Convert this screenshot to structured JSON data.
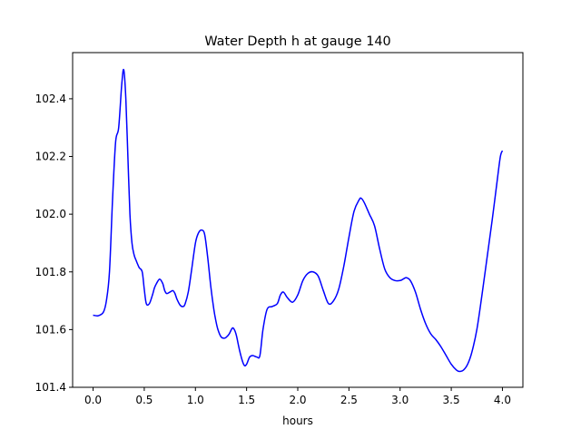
{
  "chart_data": {
    "type": "line",
    "title": "Water Depth h at gauge 140",
    "xlabel": "hours",
    "ylabel": "",
    "xlim": [
      -0.2,
      4.2
    ],
    "ylim": [
      101.4,
      102.56
    ],
    "xticks": [
      0.0,
      0.5,
      1.0,
      1.5,
      2.0,
      2.5,
      3.0,
      3.5,
      4.0
    ],
    "xtick_labels": [
      "0.0",
      "0.5",
      "1.0",
      "1.5",
      "2.0",
      "2.5",
      "3.0",
      "3.5",
      "4.0"
    ],
    "yticks": [
      101.4,
      101.6,
      101.8,
      102.0,
      102.2,
      102.4
    ],
    "ytick_labels": [
      "101.4",
      "101.6",
      "101.8",
      "102.0",
      "102.2",
      "102.4"
    ],
    "grid": false,
    "legend": "none",
    "series": [
      {
        "color": "#0000ff",
        "x": [
          0.0,
          0.05,
          0.1,
          0.13,
          0.16,
          0.19,
          0.22,
          0.25,
          0.28,
          0.3,
          0.32,
          0.34,
          0.36,
          0.38,
          0.4,
          0.42,
          0.45,
          0.48,
          0.5,
          0.52,
          0.55,
          0.58,
          0.6,
          0.62,
          0.65,
          0.68,
          0.7,
          0.72,
          0.75,
          0.78,
          0.8,
          0.82,
          0.85,
          0.88,
          0.9,
          0.93,
          0.96,
          1.0,
          1.03,
          1.06,
          1.09,
          1.12,
          1.15,
          1.18,
          1.2,
          1.22,
          1.25,
          1.28,
          1.3,
          1.33,
          1.36,
          1.38,
          1.4,
          1.43,
          1.46,
          1.48,
          1.5,
          1.53,
          1.56,
          1.6,
          1.63,
          1.66,
          1.7,
          1.75,
          1.8,
          1.83,
          1.86,
          1.9,
          1.95,
          2.0,
          2.05,
          2.1,
          2.15,
          2.2,
          2.25,
          2.3,
          2.35,
          2.4,
          2.45,
          2.5,
          2.55,
          2.6,
          2.62,
          2.65,
          2.7,
          2.75,
          2.8,
          2.85,
          2.9,
          2.95,
          3.0,
          3.03,
          3.06,
          3.1,
          3.15,
          3.2,
          3.25,
          3.3,
          3.35,
          3.4,
          3.45,
          3.5,
          3.55,
          3.58,
          3.62,
          3.66,
          3.7,
          3.75,
          3.8,
          3.85,
          3.9,
          3.95,
          3.98,
          4.0
        ],
        "y": [
          101.65,
          101.648,
          101.66,
          101.7,
          101.8,
          102.05,
          102.25,
          102.3,
          102.45,
          102.5,
          102.4,
          102.2,
          102.0,
          101.9,
          101.86,
          101.84,
          101.815,
          101.8,
          101.74,
          101.69,
          101.69,
          101.72,
          101.745,
          101.76,
          101.775,
          101.76,
          101.735,
          101.725,
          101.73,
          101.735,
          101.725,
          101.705,
          101.685,
          101.68,
          101.69,
          101.73,
          101.8,
          101.9,
          101.935,
          101.945,
          101.93,
          101.85,
          101.75,
          101.67,
          101.63,
          101.6,
          101.575,
          101.57,
          101.573,
          101.585,
          101.605,
          101.6,
          101.58,
          101.53,
          101.49,
          101.475,
          101.48,
          101.505,
          101.51,
          101.505,
          101.51,
          101.6,
          101.67,
          101.68,
          101.69,
          101.72,
          101.73,
          101.71,
          101.695,
          101.72,
          101.77,
          101.795,
          101.8,
          101.785,
          101.735,
          101.69,
          101.7,
          101.74,
          101.82,
          101.92,
          102.01,
          102.05,
          102.055,
          102.04,
          102.0,
          101.96,
          101.88,
          101.81,
          101.78,
          101.77,
          101.77,
          101.775,
          101.78,
          101.77,
          101.73,
          101.67,
          101.62,
          101.585,
          101.565,
          101.54,
          101.51,
          101.48,
          101.46,
          101.455,
          101.46,
          101.48,
          101.52,
          101.6,
          101.72,
          101.85,
          101.98,
          102.12,
          102.2,
          102.22
        ]
      }
    ]
  }
}
